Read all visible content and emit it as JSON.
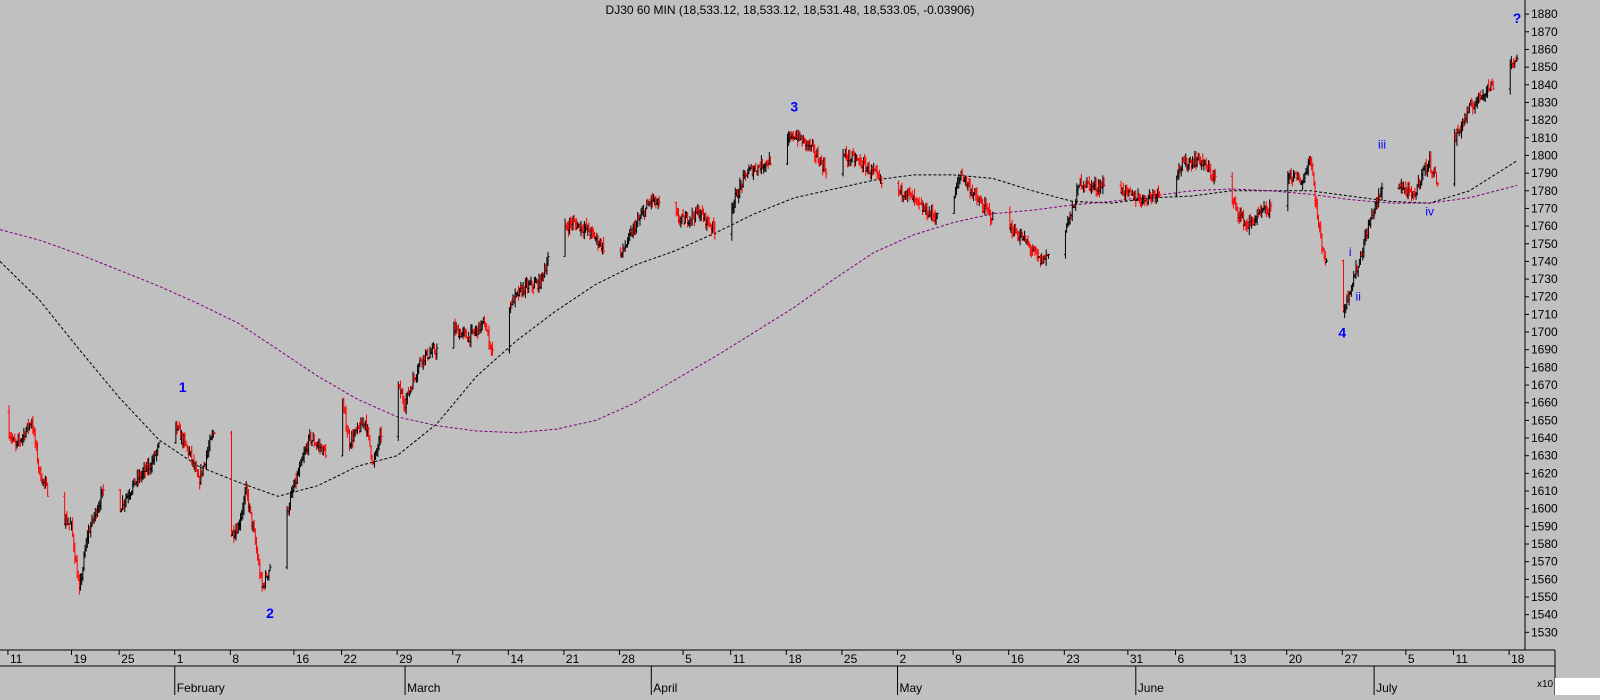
{
  "title": "DJ30 60 MIN (18,533.12, 18,533.12, 18,531.48, 18,533.05, -0.03906)",
  "scale_label": "x10",
  "colors": {
    "background": "#c0c0c0",
    "up_bar": "#000000",
    "down_bar": "#ff0000",
    "fast_ma": "#000000",
    "slow_ma": "#800080",
    "wave_labels": "#0000ff"
  },
  "chart_data": {
    "type": "line",
    "title": "DJ30 60 MIN (18,533.12, 18,533.12, 18,531.48, 18,533.05, -0.03906)",
    "xlabel": "",
    "ylabel": "",
    "y_unit_multiplier": "x10",
    "ylim": [
      1520,
      1888
    ],
    "y_ticks": [
      1530,
      1540,
      1550,
      1560,
      1570,
      1580,
      1590,
      1600,
      1610,
      1620,
      1630,
      1640,
      1650,
      1660,
      1670,
      1680,
      1690,
      1700,
      1710,
      1720,
      1730,
      1740,
      1750,
      1760,
      1770,
      1780,
      1790,
      1800,
      1810,
      1820,
      1830,
      1840,
      1850,
      1860,
      1870,
      1880
    ],
    "xlim": [
      "2016-01-10",
      "2016-07-20"
    ],
    "x_ticks": [
      {
        "date": "2016-01-11",
        "label": "11"
      },
      {
        "date": "2016-01-19",
        "label": "19"
      },
      {
        "date": "2016-01-25",
        "label": "25"
      },
      {
        "date": "2016-02-01",
        "label": "1"
      },
      {
        "date": "2016-02-08",
        "label": "8"
      },
      {
        "date": "2016-02-16",
        "label": "16"
      },
      {
        "date": "2016-02-22",
        "label": "22"
      },
      {
        "date": "2016-02-29",
        "label": "29"
      },
      {
        "date": "2016-03-07",
        "label": "7"
      },
      {
        "date": "2016-03-14",
        "label": "14"
      },
      {
        "date": "2016-03-21",
        "label": "21"
      },
      {
        "date": "2016-03-28",
        "label": "28"
      },
      {
        "date": "2016-04-05",
        "label": "5"
      },
      {
        "date": "2016-04-11",
        "label": "11"
      },
      {
        "date": "2016-04-18",
        "label": "18"
      },
      {
        "date": "2016-04-25",
        "label": "25"
      },
      {
        "date": "2016-05-02",
        "label": "2"
      },
      {
        "date": "2016-05-09",
        "label": "9"
      },
      {
        "date": "2016-05-16",
        "label": "16"
      },
      {
        "date": "2016-05-23",
        "label": "23"
      },
      {
        "date": "2016-05-31",
        "label": "31"
      },
      {
        "date": "2016-06-06",
        "label": "6"
      },
      {
        "date": "2016-06-13",
        "label": "13"
      },
      {
        "date": "2016-06-20",
        "label": "20"
      },
      {
        "date": "2016-06-27",
        "label": "27"
      },
      {
        "date": "2016-07-05",
        "label": "5"
      },
      {
        "date": "2016-07-11",
        "label": "11"
      },
      {
        "date": "2016-07-18",
        "label": "18"
      }
    ],
    "month_labels": [
      {
        "date": "2016-02-01",
        "label": "February"
      },
      {
        "date": "2016-03-01",
        "label": "March"
      },
      {
        "date": "2016-04-01",
        "label": "April"
      },
      {
        "date": "2016-05-02",
        "label": "May"
      },
      {
        "date": "2016-06-01",
        "label": "June"
      },
      {
        "date": "2016-07-01",
        "label": "July"
      }
    ],
    "price_path": [
      [
        "2016-01-10",
        1655
      ],
      [
        "2016-01-12",
        1635
      ],
      [
        "2016-01-14",
        1650
      ],
      [
        "2016-01-15",
        1620
      ],
      [
        "2016-01-17",
        1600
      ],
      [
        "2016-01-19",
        1590
      ],
      [
        "2016-01-20",
        1553
      ],
      [
        "2016-01-21",
        1585
      ],
      [
        "2016-01-23",
        1610
      ],
      [
        "2016-01-25",
        1600
      ],
      [
        "2016-01-27",
        1615
      ],
      [
        "2016-01-29",
        1625
      ],
      [
        "2016-01-31",
        1645
      ],
      [
        "2016-02-01",
        1648
      ],
      [
        "2016-02-03",
        1630
      ],
      [
        "2016-02-04",
        1615
      ],
      [
        "2016-02-06",
        1645
      ],
      [
        "2016-02-07",
        1605
      ],
      [
        "2016-02-08",
        1585
      ],
      [
        "2016-02-09",
        1590
      ],
      [
        "2016-02-10",
        1610
      ],
      [
        "2016-02-11",
        1585
      ],
      [
        "2016-02-12",
        1555
      ],
      [
        "2016-02-14",
        1580
      ],
      [
        "2016-02-16",
        1612
      ],
      [
        "2016-02-18",
        1640
      ],
      [
        "2016-02-20",
        1632
      ],
      [
        "2016-02-22",
        1662
      ],
      [
        "2016-02-23",
        1638
      ],
      [
        "2016-02-25",
        1650
      ],
      [
        "2016-02-26",
        1625
      ],
      [
        "2016-02-28",
        1660
      ],
      [
        "2016-02-29",
        1670
      ],
      [
        "2016-03-01",
        1660
      ],
      [
        "2016-03-03",
        1685
      ],
      [
        "2016-03-05",
        1690
      ],
      [
        "2016-03-07",
        1702
      ],
      [
        "2016-03-09",
        1697
      ],
      [
        "2016-03-11",
        1705
      ],
      [
        "2016-03-12",
        1688
      ],
      [
        "2016-03-14",
        1715
      ],
      [
        "2016-03-16",
        1725
      ],
      [
        "2016-03-18",
        1728
      ],
      [
        "2016-03-20",
        1755
      ],
      [
        "2016-03-22",
        1762
      ],
      [
        "2016-03-24",
        1758
      ],
      [
        "2016-03-26",
        1748
      ],
      [
        "2016-03-28",
        1742
      ],
      [
        "2016-03-30",
        1760
      ],
      [
        "2016-04-01",
        1775
      ],
      [
        "2016-04-03",
        1768
      ],
      [
        "2016-04-05",
        1763
      ],
      [
        "2016-04-07",
        1768
      ],
      [
        "2016-04-09",
        1758
      ],
      [
        "2016-04-11",
        1770
      ],
      [
        "2016-04-13",
        1790
      ],
      [
        "2016-04-15",
        1795
      ],
      [
        "2016-04-17",
        1800
      ],
      [
        "2016-04-19",
        1812
      ],
      [
        "2016-04-21",
        1805
      ],
      [
        "2016-04-23",
        1792
      ],
      [
        "2016-04-25",
        1800
      ],
      [
        "2016-04-27",
        1797
      ],
      [
        "2016-04-29",
        1790
      ],
      [
        "2016-05-01",
        1778
      ],
      [
        "2016-05-03",
        1780
      ],
      [
        "2016-05-05",
        1770
      ],
      [
        "2016-05-07",
        1765
      ],
      [
        "2016-05-09",
        1775
      ],
      [
        "2016-05-10",
        1790
      ],
      [
        "2016-05-12",
        1775
      ],
      [
        "2016-05-14",
        1765
      ],
      [
        "2016-05-16",
        1760
      ],
      [
        "2016-05-18",
        1752
      ],
      [
        "2016-05-20",
        1740
      ],
      [
        "2016-05-22",
        1748
      ],
      [
        "2016-05-24",
        1768
      ],
      [
        "2016-05-25",
        1785
      ],
      [
        "2016-05-27",
        1782
      ],
      [
        "2016-05-29",
        1785
      ],
      [
        "2016-05-31",
        1778
      ],
      [
        "2016-06-02",
        1775
      ],
      [
        "2016-06-04",
        1780
      ],
      [
        "2016-06-07",
        1795
      ],
      [
        "2016-06-09",
        1798
      ],
      [
        "2016-06-11",
        1787
      ],
      [
        "2016-06-13",
        1775
      ],
      [
        "2016-06-15",
        1760
      ],
      [
        "2016-06-17",
        1768
      ],
      [
        "2016-06-19",
        1770
      ],
      [
        "2016-06-20",
        1790
      ],
      [
        "2016-06-22",
        1785
      ],
      [
        "2016-06-23",
        1800
      ],
      [
        "2016-06-24",
        1760
      ],
      [
        "2016-06-26",
        1715
      ],
      [
        "2016-06-27",
        1710
      ],
      [
        "2016-06-28",
        1725
      ],
      [
        "2016-06-29",
        1738
      ],
      [
        "2016-06-30",
        1755
      ],
      [
        "2016-07-01",
        1770
      ],
      [
        "2016-07-03",
        1790
      ],
      [
        "2016-07-05",
        1780
      ],
      [
        "2016-07-06",
        1776
      ],
      [
        "2016-07-07",
        1790
      ],
      [
        "2016-07-08",
        1796
      ],
      [
        "2016-07-09",
        1785
      ],
      [
        "2016-07-11",
        1808
      ],
      [
        "2016-07-13",
        1826
      ],
      [
        "2016-07-15",
        1837
      ],
      [
        "2016-07-16",
        1840
      ],
      [
        "2016-07-17",
        1854
      ],
      [
        "2016-07-18",
        1852
      ],
      [
        "2016-07-19",
        1854
      ]
    ],
    "series": [
      {
        "values": [
          [
            "2016-01-10",
            1740
          ],
          [
            "2016-01-15",
            1718
          ],
          [
            "2016-01-20",
            1690
          ],
          [
            "2016-01-25",
            1663
          ],
          [
            "2016-01-30",
            1639
          ],
          [
            "2016-02-04",
            1624
          ],
          [
            "2016-02-09",
            1615
          ],
          [
            "2016-02-14",
            1607
          ],
          [
            "2016-02-19",
            1613
          ],
          [
            "2016-02-24",
            1624
          ],
          [
            "2016-02-29",
            1630
          ],
          [
            "2016-03-05",
            1648
          ],
          [
            "2016-03-10",
            1675
          ],
          [
            "2016-03-15",
            1695
          ],
          [
            "2016-03-20",
            1712
          ],
          [
            "2016-03-25",
            1727
          ],
          [
            "2016-03-30",
            1738
          ],
          [
            "2016-04-04",
            1746
          ],
          [
            "2016-04-09",
            1756
          ],
          [
            "2016-04-14",
            1767
          ],
          [
            "2016-04-19",
            1776
          ],
          [
            "2016-04-24",
            1781
          ],
          [
            "2016-04-29",
            1786
          ],
          [
            "2016-05-04",
            1789
          ],
          [
            "2016-05-09",
            1789
          ],
          [
            "2016-05-14",
            1787
          ],
          [
            "2016-05-19",
            1780
          ],
          [
            "2016-05-24",
            1774
          ],
          [
            "2016-05-29",
            1773
          ],
          [
            "2016-06-03",
            1776
          ],
          [
            "2016-06-08",
            1777
          ],
          [
            "2016-06-13",
            1780
          ],
          [
            "2016-06-18",
            1780
          ],
          [
            "2016-06-23",
            1780
          ],
          [
            "2016-06-28",
            1777
          ],
          [
            "2016-07-03",
            1774
          ],
          [
            "2016-07-08",
            1773
          ],
          [
            "2016-07-13",
            1780
          ],
          [
            "2016-07-19",
            1797
          ]
        ]
      },
      {
        "values": [
          [
            "2016-01-10",
            1758
          ],
          [
            "2016-01-15",
            1752
          ],
          [
            "2016-01-20",
            1744
          ],
          [
            "2016-01-25",
            1735
          ],
          [
            "2016-01-30",
            1726
          ],
          [
            "2016-02-04",
            1716
          ],
          [
            "2016-02-09",
            1705
          ],
          [
            "2016-02-14",
            1690
          ],
          [
            "2016-02-19",
            1675
          ],
          [
            "2016-02-24",
            1662
          ],
          [
            "2016-02-29",
            1652
          ],
          [
            "2016-03-05",
            1647
          ],
          [
            "2016-03-10",
            1644
          ],
          [
            "2016-03-15",
            1643
          ],
          [
            "2016-03-20",
            1645
          ],
          [
            "2016-03-25",
            1650
          ],
          [
            "2016-03-30",
            1660
          ],
          [
            "2016-04-04",
            1673
          ],
          [
            "2016-04-09",
            1686
          ],
          [
            "2016-04-14",
            1700
          ],
          [
            "2016-04-19",
            1714
          ],
          [
            "2016-04-24",
            1730
          ],
          [
            "2016-04-29",
            1745
          ],
          [
            "2016-05-04",
            1755
          ],
          [
            "2016-05-09",
            1762
          ],
          [
            "2016-05-14",
            1767
          ],
          [
            "2016-05-19",
            1769
          ],
          [
            "2016-05-24",
            1772
          ],
          [
            "2016-05-29",
            1774
          ],
          [
            "2016-06-03",
            1777
          ],
          [
            "2016-06-08",
            1780
          ],
          [
            "2016-06-13",
            1781
          ],
          [
            "2016-06-18",
            1780
          ],
          [
            "2016-06-23",
            1778
          ],
          [
            "2016-06-28",
            1775
          ],
          [
            "2016-07-03",
            1773
          ],
          [
            "2016-07-08",
            1773
          ],
          [
            "2016-07-13",
            1776
          ],
          [
            "2016-07-19",
            1783
          ]
        ]
      }
    ],
    "annotations": [
      {
        "label": "1",
        "date": "2016-02-02",
        "value": 1666,
        "size": "major"
      },
      {
        "label": "2",
        "date": "2016-02-13",
        "value": 1538,
        "size": "major"
      },
      {
        "label": "3",
        "date": "2016-04-19",
        "value": 1825,
        "size": "major"
      },
      {
        "label": "4",
        "date": "2016-06-27",
        "value": 1697,
        "size": "major"
      },
      {
        "label": "?",
        "date": "2016-07-19",
        "value": 1875,
        "size": "major"
      },
      {
        "label": "i",
        "date": "2016-06-28",
        "value": 1743,
        "size": "minor"
      },
      {
        "label": "ii",
        "date": "2016-06-29",
        "value": 1718,
        "size": "minor"
      },
      {
        "label": "iii",
        "date": "2016-07-02",
        "value": 1804,
        "size": "minor"
      },
      {
        "label": "iv",
        "date": "2016-07-08",
        "value": 1766,
        "size": "minor"
      }
    ],
    "grid": false,
    "legend": "none"
  }
}
